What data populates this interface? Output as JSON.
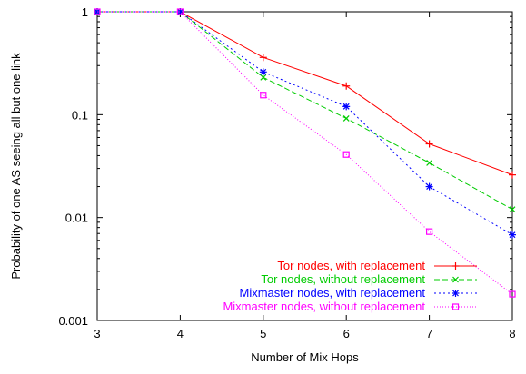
{
  "chart_data": {
    "type": "line",
    "title": "",
    "xlabel": "Number of Mix Hops",
    "ylabel": "Probability of one AS seeing all but one link",
    "x": [
      3,
      4,
      5,
      6,
      7,
      8
    ],
    "xlim": [
      3,
      8
    ],
    "ylim": [
      0.001,
      1
    ],
    "yscale": "log",
    "x_ticks": [
      "3",
      "4",
      "5",
      "6",
      "7",
      "8"
    ],
    "y_ticks": [
      {
        "value": 0.001,
        "label": "0.001"
      },
      {
        "value": 0.01,
        "label": "0.01"
      },
      {
        "value": 0.1,
        "label": "0.1"
      },
      {
        "value": 1,
        "label": "1"
      }
    ],
    "grid": false,
    "legend_position": "bottom-right",
    "series": [
      {
        "name": "Tor nodes, with replacement",
        "color": "#ff0000",
        "dash": "solid",
        "marker": "plus",
        "values": [
          1,
          1,
          0.36,
          0.19,
          0.052,
          0.026
        ]
      },
      {
        "name": "Tor nodes, without replacement",
        "color": "#00cc00",
        "dash": "dashed",
        "marker": "cross",
        "values": [
          1,
          1,
          0.23,
          0.092,
          0.034,
          0.012
        ]
      },
      {
        "name": "Mixmaster nodes, with replacement",
        "color": "#0000ff",
        "dash": "dotted",
        "marker": "star",
        "values": [
          1,
          1,
          0.26,
          0.12,
          0.02,
          0.0068
        ]
      },
      {
        "name": "Mixmaster nodes, without replacement",
        "color": "#ff00ff",
        "dash": "fine-dotted",
        "marker": "square",
        "values": [
          1,
          1,
          0.155,
          0.041,
          0.0073,
          0.0018
        ]
      }
    ]
  }
}
